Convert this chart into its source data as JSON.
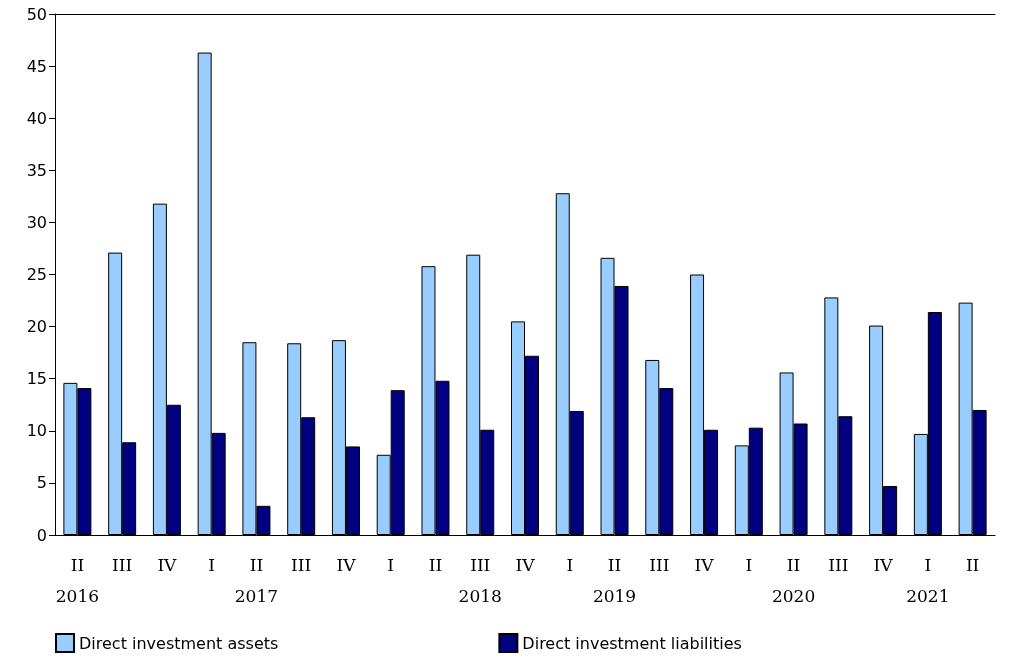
{
  "chart_data": {
    "type": "bar",
    "categories": [
      "II\n2016",
      "III",
      "IV",
      "I",
      "II\n2017",
      "III",
      "IV",
      "I",
      "II",
      "III\n2018",
      "IV",
      "I",
      "II\n2019",
      "III",
      "IV",
      "I",
      "II\n2020",
      "III",
      "IV",
      "I\n2021",
      "II"
    ],
    "series": [
      {
        "name": "Direct investment assets",
        "color": "#99ccff",
        "values": [
          14.6,
          27.1,
          31.8,
          46.3,
          18.5,
          18.4,
          18.7,
          7.7,
          25.8,
          26.9,
          20.5,
          32.8,
          26.6,
          16.8,
          25.0,
          8.6,
          15.6,
          22.8,
          20.1,
          9.7,
          22.3
        ]
      },
      {
        "name": "Direct investment liabilities",
        "color": "#000080",
        "values": [
          14.1,
          8.9,
          12.5,
          9.8,
          2.8,
          11.3,
          8.5,
          13.9,
          14.8,
          10.1,
          17.2,
          11.9,
          23.9,
          14.1,
          10.1,
          10.3,
          10.7,
          11.4,
          4.7,
          21.4,
          12.0
        ]
      }
    ],
    "ylim": [
      0,
      50
    ],
    "yticks": [
      0,
      5,
      10,
      15,
      20,
      25,
      30,
      35,
      40,
      45,
      50
    ],
    "grid": false,
    "legend": "bottom"
  }
}
